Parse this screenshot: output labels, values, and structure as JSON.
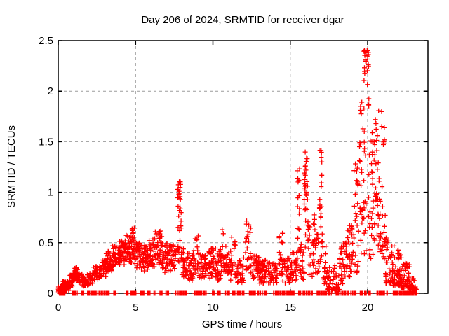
{
  "chart_data": {
    "type": "scatter",
    "title": "Day 206 of 2024, SRMTID for receiver dgar",
    "xlabel": "GPS time / hours",
    "ylabel": "SRMTID / TECUs",
    "series": [
      {
        "name": "SRMTID",
        "marker": "plus",
        "color": "#ff0000"
      }
    ],
    "xlim": [
      0,
      23.9
    ],
    "ylim": [
      0,
      2.5
    ],
    "xticks": [
      0,
      5,
      10,
      15,
      20
    ],
    "xtick_labels": [
      "0",
      "5",
      "10",
      "15",
      "20"
    ],
    "yticks": [
      0,
      0.5,
      1,
      1.5,
      2,
      2.5
    ],
    "ytick_labels": [
      "0",
      "0.5",
      "1",
      "1.5",
      "2",
      "2.5"
    ],
    "grid": true,
    "legend": "none",
    "colors": {
      "marker": "#ff0000",
      "grid": "#9b9b9b",
      "axis": "#000000",
      "text": "#000000",
      "background": "#ffffff"
    },
    "peaks": [
      {
        "x": 1.1,
        "y": 0.24
      },
      {
        "x": 4.8,
        "y": 0.66
      },
      {
        "x": 6.5,
        "y": 0.62
      },
      {
        "x": 7.8,
        "y": 1.1
      },
      {
        "x": 10.7,
        "y": 0.63
      },
      {
        "x": 12.3,
        "y": 0.72
      },
      {
        "x": 14.4,
        "y": 0.68
      },
      {
        "x": 15.5,
        "y": 1.33
      },
      {
        "x": 16.0,
        "y": 1.43
      },
      {
        "x": 17.0,
        "y": 1.45
      },
      {
        "x": 19.95,
        "y": 2.4
      },
      {
        "x": 20.6,
        "y": 1.87
      },
      {
        "x": 21.0,
        "y": 1.8
      }
    ],
    "clusters_format": [
      "x_start_hours",
      "x_end_hours",
      "y_min_TECUs",
      "y_max_TECUs",
      "point_count",
      "bias(0=uniform,1=bottom-heavy,2=top-heavy)"
    ],
    "clusters": [
      [
        0.0,
        0.35,
        0.005,
        0.07,
        38,
        0
      ],
      [
        0.3,
        0.7,
        0.02,
        0.12,
        34,
        0
      ],
      [
        0.7,
        0.95,
        0.06,
        0.18,
        26,
        0
      ],
      [
        0.95,
        1.25,
        0.13,
        0.26,
        30,
        0
      ],
      [
        1.25,
        1.55,
        0.1,
        0.2,
        22,
        0
      ],
      [
        1.55,
        1.85,
        0.07,
        0.16,
        22,
        0
      ],
      [
        1.85,
        2.25,
        0.08,
        0.2,
        26,
        0
      ],
      [
        2.25,
        2.7,
        0.12,
        0.27,
        30,
        0
      ],
      [
        2.7,
        3.1,
        0.16,
        0.33,
        34,
        0
      ],
      [
        3.1,
        3.5,
        0.2,
        0.42,
        38,
        0
      ],
      [
        3.5,
        3.95,
        0.25,
        0.48,
        38,
        0
      ],
      [
        3.95,
        4.4,
        0.28,
        0.52,
        42,
        0
      ],
      [
        4.4,
        4.75,
        0.3,
        0.58,
        34,
        0
      ],
      [
        4.75,
        4.95,
        0.33,
        0.66,
        22,
        0
      ],
      [
        4.95,
        5.35,
        0.25,
        0.5,
        34,
        0
      ],
      [
        5.35,
        5.8,
        0.22,
        0.48,
        34,
        0
      ],
      [
        5.8,
        6.25,
        0.25,
        0.55,
        38,
        0
      ],
      [
        6.25,
        6.7,
        0.28,
        0.62,
        38,
        0
      ],
      [
        6.7,
        7.15,
        0.2,
        0.5,
        34,
        0
      ],
      [
        7.15,
        7.65,
        0.22,
        0.48,
        30,
        0
      ],
      [
        7.7,
        7.95,
        0.3,
        1.1,
        26,
        0
      ],
      [
        7.74,
        7.9,
        0.9,
        1.12,
        8,
        2
      ],
      [
        7.95,
        8.3,
        0.15,
        0.45,
        30,
        0
      ],
      [
        8.3,
        8.75,
        0.12,
        0.4,
        34,
        0
      ],
      [
        8.75,
        9.05,
        0.15,
        0.57,
        20,
        0
      ],
      [
        9.05,
        9.6,
        0.14,
        0.4,
        38,
        0
      ],
      [
        9.6,
        10.1,
        0.15,
        0.45,
        38,
        0
      ],
      [
        10.1,
        10.6,
        0.12,
        0.45,
        38,
        0
      ],
      [
        10.6,
        10.85,
        0.2,
        0.63,
        17,
        0
      ],
      [
        10.85,
        11.2,
        0.12,
        0.42,
        30,
        0
      ],
      [
        11.2,
        11.45,
        0.18,
        0.57,
        16,
        0
      ],
      [
        11.45,
        12.0,
        0.1,
        0.35,
        38,
        0
      ],
      [
        12.1,
        12.45,
        0.2,
        0.72,
        25,
        0
      ],
      [
        12.45,
        13.0,
        0.12,
        0.38,
        38,
        0
      ],
      [
        13.0,
        13.6,
        0.1,
        0.33,
        46,
        0
      ],
      [
        13.6,
        14.15,
        0.1,
        0.3,
        38,
        0
      ],
      [
        14.25,
        14.5,
        0.15,
        0.68,
        18,
        0
      ],
      [
        14.5,
        15.05,
        0.1,
        0.35,
        38,
        0
      ],
      [
        15.05,
        15.42,
        0.1,
        0.42,
        25,
        0
      ],
      [
        15.45,
        15.62,
        0.3,
        1.33,
        17,
        0
      ],
      [
        15.6,
        15.9,
        0.12,
        0.5,
        21,
        0
      ],
      [
        15.9,
        16.15,
        0.45,
        0.95,
        13,
        0
      ],
      [
        15.92,
        16.12,
        0.95,
        1.2,
        15,
        0
      ],
      [
        15.95,
        16.1,
        1.2,
        1.43,
        7,
        0
      ],
      [
        16.15,
        16.6,
        0.15,
        0.8,
        30,
        0
      ],
      [
        16.6,
        16.85,
        0.2,
        0.6,
        17,
        0
      ],
      [
        16.85,
        17.1,
        0.25,
        1.0,
        17,
        0
      ],
      [
        16.88,
        17.05,
        1.0,
        1.45,
        8,
        0
      ],
      [
        17.1,
        17.4,
        0.08,
        0.5,
        18,
        0
      ],
      [
        17.4,
        18.2,
        0.03,
        0.28,
        50,
        1
      ],
      [
        18.2,
        18.65,
        0.08,
        0.5,
        34,
        0
      ],
      [
        18.65,
        19.05,
        0.15,
        0.68,
        30,
        0
      ],
      [
        19.05,
        19.45,
        0.2,
        1.3,
        30,
        0
      ],
      [
        19.45,
        19.8,
        0.3,
        1.9,
        30,
        0
      ],
      [
        19.75,
        20.1,
        0.4,
        2.4,
        40,
        2
      ],
      [
        20.1,
        20.5,
        0.3,
        1.6,
        34,
        0
      ],
      [
        20.5,
        20.75,
        0.3,
        1.87,
        26,
        0
      ],
      [
        20.75,
        21.15,
        0.2,
        1.1,
        30,
        0
      ],
      [
        20.9,
        21.1,
        1.4,
        1.8,
        7,
        0
      ],
      [
        21.15,
        21.65,
        0.1,
        0.55,
        50,
        1
      ],
      [
        21.65,
        22.2,
        0.08,
        0.52,
        55,
        1
      ],
      [
        22.2,
        22.7,
        0.05,
        0.3,
        46,
        1
      ],
      [
        22.7,
        23.05,
        0.03,
        0.15,
        30,
        1
      ],
      [
        23.0,
        23.15,
        0.02,
        0.07,
        6,
        0
      ]
    ],
    "zero_segments_format": [
      "x_start_hours",
      "x_end_hours",
      "point_count"
    ],
    "zero_segments": [
      [
        0.05,
        0.5,
        18
      ],
      [
        0.9,
        1.25,
        12
      ],
      [
        1.5,
        1.65,
        5
      ],
      [
        1.85,
        2.05,
        7
      ],
      [
        2.15,
        2.6,
        14
      ],
      [
        2.65,
        3.35,
        20
      ],
      [
        3.55,
        3.75,
        7
      ],
      [
        4.35,
        4.55,
        7
      ],
      [
        4.7,
        5.05,
        11
      ],
      [
        5.2,
        5.55,
        11
      ],
      [
        5.7,
        5.95,
        7
      ],
      [
        6.1,
        6.35,
        7
      ],
      [
        6.55,
        6.72,
        5
      ],
      [
        6.9,
        7.15,
        7
      ],
      [
        7.55,
        8.35,
        22
      ],
      [
        8.75,
        9.65,
        24
      ],
      [
        9.95,
        10.55,
        16
      ],
      [
        10.8,
        12.05,
        32
      ],
      [
        12.35,
        13.55,
        30
      ],
      [
        13.85,
        15.25,
        36
      ],
      [
        15.5,
        16.45,
        25
      ],
      [
        16.7,
        17.65,
        25
      ],
      [
        17.95,
        19.25,
        34
      ],
      [
        19.5,
        20.25,
        20
      ],
      [
        20.55,
        21.35,
        22
      ],
      [
        21.65,
        23.15,
        48
      ]
    ]
  }
}
